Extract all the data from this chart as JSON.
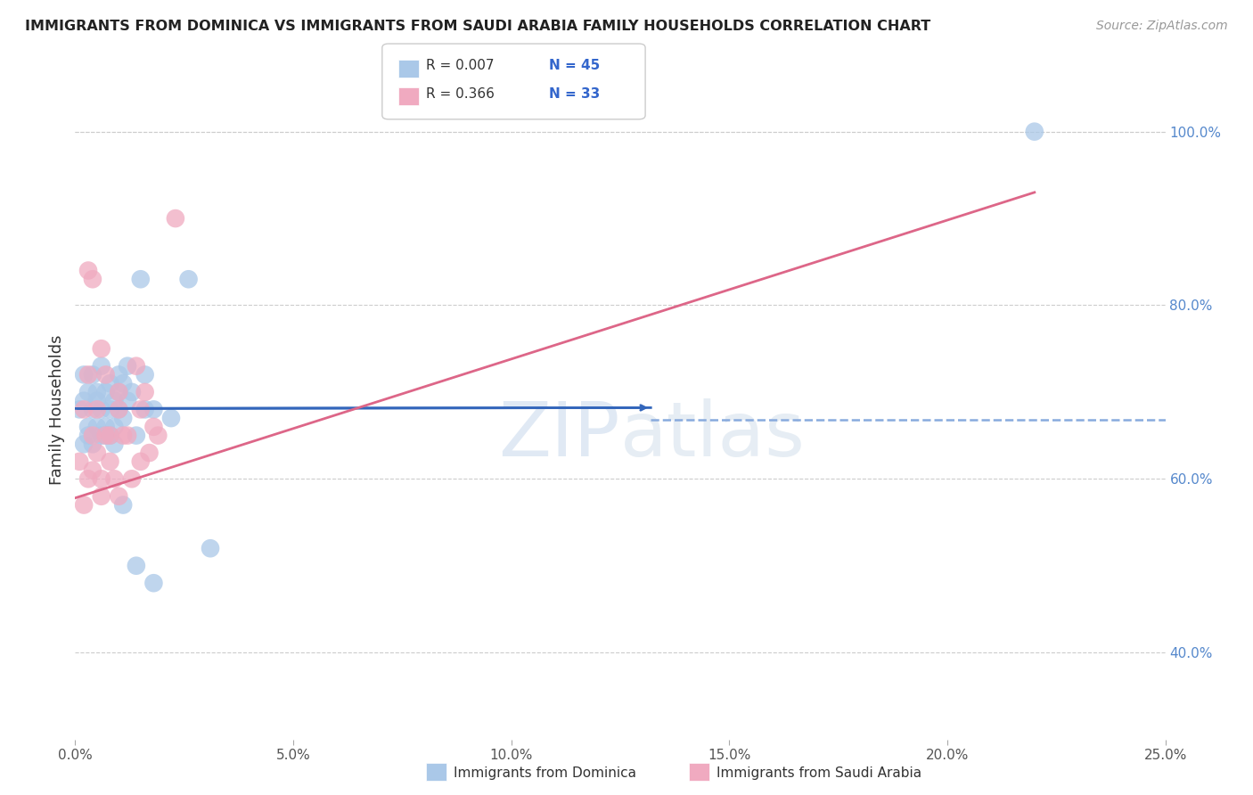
{
  "title": "IMMIGRANTS FROM DOMINICA VS IMMIGRANTS FROM SAUDI ARABIA FAMILY HOUSEHOLDS CORRELATION CHART",
  "source": "Source: ZipAtlas.com",
  "xlabel_blue": "Immigrants from Dominica",
  "xlabel_pink": "Immigrants from Saudi Arabia",
  "ylabel": "Family Households",
  "xlim": [
    0.0,
    0.25
  ],
  "ylim": [
    0.3,
    1.06
  ],
  "xticks": [
    0.0,
    0.05,
    0.1,
    0.15,
    0.2,
    0.25
  ],
  "xtick_labels": [
    "0.0%",
    "5.0%",
    "10.0%",
    "15.0%",
    "20.0%",
    "25.0%"
  ],
  "ytick_labels_right": [
    "40.0%",
    "60.0%",
    "80.0%",
    "100.0%"
  ],
  "ytick_vals_right": [
    0.4,
    0.6,
    0.8,
    1.0
  ],
  "legend_blue_r": "R = 0.007",
  "legend_blue_n": "N = 45",
  "legend_pink_r": "R = 0.366",
  "legend_pink_n": "N = 33",
  "blue_color": "#aac8e8",
  "pink_color": "#f0aac0",
  "blue_line_color": "#3366bb",
  "pink_line_color": "#dd6688",
  "dashed_line_color": "#88aadd",
  "watermark_zip": "ZIP",
  "watermark_atlas": "atlas",
  "blue_dots_x": [
    0.001,
    0.002,
    0.002,
    0.003,
    0.003,
    0.004,
    0.004,
    0.005,
    0.005,
    0.005,
    0.006,
    0.006,
    0.007,
    0.007,
    0.008,
    0.008,
    0.009,
    0.009,
    0.01,
    0.01,
    0.01,
    0.011,
    0.011,
    0.012,
    0.012,
    0.013,
    0.014,
    0.015,
    0.016,
    0.018,
    0.002,
    0.003,
    0.004,
    0.006,
    0.007,
    0.008,
    0.009,
    0.011,
    0.014,
    0.016,
    0.018,
    0.022,
    0.026,
    0.031,
    0.22
  ],
  "blue_dots_y": [
    0.68,
    0.72,
    0.69,
    0.7,
    0.66,
    0.72,
    0.68,
    0.7,
    0.69,
    0.66,
    0.73,
    0.68,
    0.7,
    0.65,
    0.71,
    0.68,
    0.69,
    0.66,
    0.72,
    0.7,
    0.68,
    0.71,
    0.67,
    0.69,
    0.73,
    0.7,
    0.65,
    0.83,
    0.72,
    0.68,
    0.64,
    0.65,
    0.64,
    0.65,
    0.66,
    0.65,
    0.64,
    0.57,
    0.5,
    0.68,
    0.48,
    0.67,
    0.83,
    0.52,
    1.0
  ],
  "pink_dots_x": [
    0.001,
    0.002,
    0.002,
    0.003,
    0.003,
    0.004,
    0.004,
    0.005,
    0.005,
    0.006,
    0.006,
    0.007,
    0.007,
    0.008,
    0.008,
    0.009,
    0.01,
    0.01,
    0.011,
    0.012,
    0.013,
    0.014,
    0.015,
    0.016,
    0.017,
    0.018,
    0.019,
    0.003,
    0.004,
    0.006,
    0.01,
    0.015,
    0.023
  ],
  "pink_dots_y": [
    0.62,
    0.68,
    0.57,
    0.72,
    0.6,
    0.65,
    0.61,
    0.68,
    0.63,
    0.6,
    0.58,
    0.65,
    0.72,
    0.62,
    0.65,
    0.6,
    0.7,
    0.58,
    0.65,
    0.65,
    0.6,
    0.73,
    0.68,
    0.7,
    0.63,
    0.66,
    0.65,
    0.84,
    0.83,
    0.75,
    0.68,
    0.62,
    0.9
  ],
  "blue_trend_x": [
    0.0,
    0.132
  ],
  "blue_trend_y": [
    0.681,
    0.682
  ],
  "pink_trend_x": [
    0.0,
    0.22
  ],
  "pink_trend_y": [
    0.578,
    0.93
  ],
  "dashed_line_y": 0.668,
  "dashed_line_x_start": 0.132,
  "dashed_line_x_end": 0.25
}
